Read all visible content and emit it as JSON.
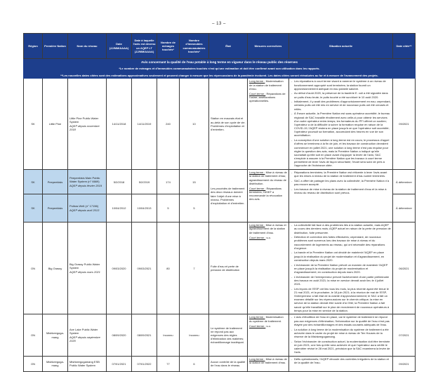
{
  "page": {
    "number": "– 13 –"
  },
  "banner": {
    "title": "Avis concernant la qualité de l'eau potable à long terme en vigueur dans le réseau public des réserves",
    "note1": "*Le nombre de ménages et d'immeubles communautaires touchés n'est qu'une estimation et doit être confirmé avant son utilisation dans les rapports.",
    "note2": "**Les nouvelles dates citées sont des estimations approximatives seulement et peuvent changer à mesure que les répercussions de la pandémie évoluent. Les dates citées seront réévaluées au fur et à mesure de l'avancement des projets."
  },
  "colors": {
    "header_bg": "#1d3e8c",
    "highlight_bg": "#bdd7ee"
  },
  "table": {
    "headers": {
      "region": "Région",
      "nation": "Première Nation",
      "network": "Nom du réseau",
      "date": "Date (JJ/MM/AAAA)",
      "date_lt": "Date à laquelle l'avis est devenu un AQEP LT (JJ/MM/AAAA)",
      "households": "Nombre de ménages touchés*",
      "buildings": "Nombre d'immeubles communautaires touchés*",
      "status": "État",
      "corrective": "Mesures correctives",
      "situation": "Situation actuelle",
      "cited": "Date citée**"
    },
    "rows": [
      {
        "region": "SK",
        "nation": "Little Pine",
        "network": "Little Pine Public Water System",
        "network_sub": "AQEP depuis novembre 2018",
        "date": "14/11/2018",
        "date_lt": "14/11/2019",
        "households": "240",
        "buildings": "10",
        "status": "Station en mauvais état et au-delà de son cycle de vie. Problèmes d'exploitation et d'entretien.",
        "corrective": {
          "long_label": "Long terme :",
          "long_text": "Modernisation de la station de traitement d'eau.",
          "court_label": "Court terme :",
          "court_text": "Réparations de l'usine; améliorations opérationnelles."
        },
        "situation": [
          "Les réparations à court terme visant à ramener le système à un niveau de fonctionnement approprié sont terminées; la station fournit un approvisionnement adéquat en eau potable salubre.",
          "Au début d'août 2020, la présence de la bactérie E. coli a été signalée dans un puits d'eau brute; le puits touché a été surchloré le 10 août 2020.",
          "Initialement, il y avait des problèmes d'approvisionnement en eau; cependant, certains puits ont été mis en service et de nouveaux puits ont été creusés et reliés.",
          "À l'heure actuelle, la Première Nation est sans opérateur accrédité; le bureau régional de SAC travaille étroitement avec celle-ci pour obtenir les services d'un autre opérateur entre-temps; les formateurs du PFI offrent un soutien; l'opérateur a de la difficulté à suivre la formation requise en raison de la COVID-19; l'AQEP restera en place jusqu'à ce que l'opérateur soit accrédité; l'opérateur poursuit sa formation, accumulant des heures en vue de son accréditation.",
          "La conception d'une solution à long terme est en cours; le processus d'appel d'offres se terminera à la fin de juin, et les travaux de construction devraient commencer en juillet 2021; une solution à long terme n'est pas requise pour régler la question des avis; mais la Première Nation a indiqué qu'elle souhaitait qu'elle soit en place avant d'appuyer la levée de l'avis; SAC s'emploie à assurer à la Première Nation que les travaux à court terme permettent de lever l'avis de façon sécuritaire; l'écart sera suivi de près à l'approche de l'échéance citée."
        ],
        "cited": "09/2021"
      },
      {
        "region": "SK",
        "nation": "Peepeekisis",
        "network": "Peepeekisis Main Public Water System (n° 6669)",
        "network_sub": "AQEP depuis février 2019",
        "date": "5/2/2018",
        "date_lt": "5/2/2019",
        "households": "174",
        "buildings": "15",
        "status": "Les procédés de traitement des deux réseaux doivent faire l'objet d'une mise à niveau. Problèmes d'exploitation et d'entretien.",
        "corrective": {
          "long_label": "Long terme :",
          "long_text": "Mise à niveau de la station de traitement d'eau; agrandissement du réseau de distribution.",
          "court_label": "Court terme :",
          "court_text": "Réparations terminées; l'ASEF a recommandé la révocation des avis."
        },
        "situation": [
          "Réparations terminées; la Première Nation est réticente à lever l'avis avant que les mises à niveau de la station de traitement d'eau soient terminées.",
          "SAC a offert de partager les plans avec la collectivité; la Première Nation n'a pas encore accepté.",
          "Les travaux de mise à niveau de la station de traitement d'eau et la mise à niveau du réseau de distribution sont prévus."
        ],
        "cited": "À déterminer"
      },
      {
        "region": "SK",
        "nation": "Peepeekisis",
        "network": "Poitras Well (n° 17156)",
        "network_sub": "AQEP depuis avril 2013",
        "date": "10/04/2012",
        "date_lt": "10/04/2013",
        "households": "5",
        "buildings": "5",
        "cited": "À déterminer"
      },
      {
        "region": "ON",
        "nation": "Big Grassy",
        "network": "Big Grassy Public Water System",
        "network_sub": "AQEP depuis mars 2021",
        "date": "09/03/2020",
        "date_lt": "09/03/2021",
        "households": "80",
        "buildings": "7",
        "status": "Fuite d'eau et perte de pression de distribution",
        "corrective": {
          "long_label": "Long terme :",
          "long_text": "Mise à niveau et agrandissement de la station de traitement d'eau.",
          "court_label": "Court terme :",
          "court_text": "s.o."
        },
        "situation": [
          "La collectivité fait face à des problèmes liés à la station actuelle, mais AQEP au cours des derniers mois; AQEP actuel en raison de la perte de pression de distribution, fuite présumée.",
          "Détection et correction des fuites effectuées; cependant, de nouveaux problèmes sont survenus lors des travaux de mise à niveau et du raccordement de logements au réseau, qui ont nécessité des réparations d'urgence.",
          "La bande et la Première Nation ont décidé de maintenir l'AQEP en place jusqu'à la réalisation du projet de modernisation et d'agrandissement, en construction depuis mars 2020.",
          "L'échéancier de la Première Nation prévoit un examen de maintenir l'AQEP en place jusqu'à la réalisation du projet de modernisation et d'agrandissement; en construction depuis mars 2020.",
          "L'échéancier de l'entrepreneur prévoit l'achèvement d'une partie préliminaire des travaux en août 2021; la mise en service devrait avoir lieu le 4 juillet 2021.",
          "Les leçons de l'ESP ont lieu tous les mois, la plus récente ayant été tenue le 21 mai 2021, et la prochaine, le 18 juin 2021; à la réunion de mai de l'ESP, l'entrepreneur a fait état de la crainte d'approvisionnement; le SAC a fait un examen détaillé sur les répercussions sur le chemin critique; la mise en service de la station devrait être suivie d'ici l'été; la Première Nation a fait savoir qu'elle travaillait sur le plan de recrutement de nouveaux opérateurs à temps pour la mise en service de la station."
        ],
        "cited": "06/2021"
      },
      {
        "region": "ON",
        "nation": "Mishkeegoga-mang",
        "network": "Axe Lake Public Water System",
        "network_sub": "AQEP depuis septembre 2020",
        "date": "08/09/2020",
        "date_lt": "08/09/2021",
        "households": "Inconnu",
        "buildings": "Inconnu",
        "status": "Le système de traitement ne répond pas aux exigences des règles d'élimination des matières; échantillonnage inadéquat.",
        "corrective": {
          "long_label": "Long terme :",
          "long_text": "Modernisation du système de traitement.",
          "court_label": "Court terme :",
          "court_text": "s.o."
        },
        "situation": [
          "L'avis d'ébullition de l'eau en place, car le système de traitement ne répond pas aux exigences d'élimination; l'information sur la qualité de l'eau n'est pas étayée par des échantillonnages et des essais courants adéquats de l'eau.",
          "La solution à long terme de la modernisation du système de traitement a été achevée dans le cadre du projet de mise à niveau de Ten Houses de la réserve de la Mishkeegogamang.",
          "Selon l'échéancier de construction actuel, la modernisation doit être terminée en juin 2021; une fois qu'elle sera achevée et que l'opérateur aura vérifié le calendrier révisé le 28 mai 2021, précision que la SAC examinera la levée de l'avis."
        ],
        "cited": "07/2021"
      },
      {
        "region": "ON",
        "nation": "Mishkeegoga-mang",
        "network": "Mishkeegogamang ESB Public Water System",
        "network_sub": "",
        "date": "07/01/2021",
        "date_lt": "07/01/2022",
        "households": "77",
        "buildings": "6",
        "status": "Aucun contrôle de la qualité de l'eau dans le réseau.",
        "corrective": {
          "long_label": "Long terme :",
          "long_text": "Mise à niveau de la station de traitement d'eau."
        },
        "situation": [
          "Défis opérationnels; l'AQEP découle des contrôles irréguliers de la station et de la qualité de l'eau."
        ],
        "cited": "09/2021"
      }
    ]
  }
}
